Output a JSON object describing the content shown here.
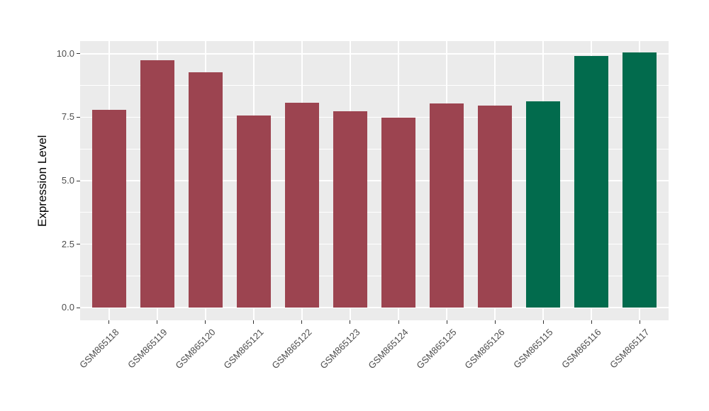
{
  "figure": {
    "background": "#FFFFFF"
  },
  "chart_data": {
    "type": "bar",
    "title": "",
    "ylabel": "Expression Level",
    "xlabel": "",
    "categories": [
      "GSM865118",
      "GSM865119",
      "GSM865120",
      "GSM865121",
      "GSM865122",
      "GSM865123",
      "GSM865124",
      "GSM865125",
      "GSM865126",
      "GSM865115",
      "GSM865116",
      "GSM865117"
    ],
    "values": [
      7.79,
      9.74,
      9.28,
      7.58,
      8.07,
      7.74,
      7.48,
      8.05,
      7.95,
      8.14,
      9.91,
      10.04
    ],
    "bar_colors": [
      "#9C4450",
      "#9C4450",
      "#9C4450",
      "#9C4450",
      "#9C4450",
      "#9C4450",
      "#9C4450",
      "#9C4450",
      "#9C4450",
      "#026B4D",
      "#026B4D",
      "#026B4D"
    ],
    "group_colors": {
      "maroon_group": "#9C4450",
      "green_group": "#026B4D"
    },
    "ylim": [
      0,
      10.5
    ],
    "yticks": {
      "values": [
        0,
        2.5,
        5,
        7.5,
        10
      ],
      "labels": [
        "0.0",
        "2.5",
        "5.0",
        "7.5",
        "10.0"
      ]
    },
    "yminor": [
      1.25,
      3.75,
      6.25,
      8.75
    ],
    "grid": "on",
    "legend_position": "none",
    "panel_background": "#EBEBEB",
    "grid_color": "#FFFFFF",
    "tick_color": "#333333",
    "axis_text_color": "#4D4D4D",
    "axis_title_color": "#000000",
    "bar_width_fraction": 0.7
  }
}
